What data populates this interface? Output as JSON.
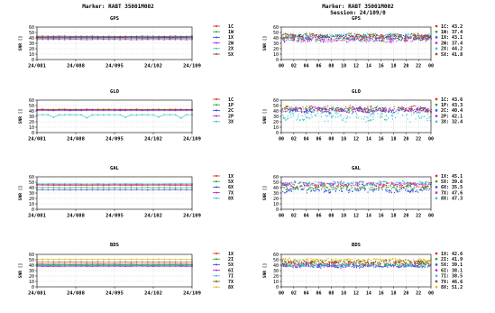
{
  "header": {
    "left_title": "Marker: RABT 35001M002",
    "right_title": "Marker: RABT 35001M002",
    "right_subtitle": "Session: 24/109/0"
  },
  "chart_data": [
    {
      "id": "gps-daily",
      "type": "line",
      "title": "GPS",
      "ylabel": "SNR []",
      "ylim": [
        0,
        60
      ],
      "yticks": [
        0,
        10,
        20,
        30,
        40,
        50,
        60
      ],
      "xticks": [
        "24/081",
        "24/088",
        "24/095",
        "24/102",
        "24/109"
      ],
      "x_range": [
        81,
        109
      ],
      "series": [
        {
          "name": "1C",
          "color": "#e8221f",
          "y": 41.5
        },
        {
          "name": "1W",
          "color": "#2aa12a",
          "y": 39.5
        },
        {
          "name": "1X",
          "color": "#2b4fd8",
          "y": 40.5
        },
        {
          "name": "2W",
          "color": "#b820d6",
          "y": 37.0
        },
        {
          "name": "2X",
          "color": "#30c8d0",
          "y": 42.5
        },
        {
          "name": "5X",
          "color": "#8b4a1e",
          "y": 43.0
        }
      ]
    },
    {
      "id": "glo-daily",
      "type": "line",
      "title": "GLO",
      "ylabel": "SNR []",
      "ylim": [
        0,
        60
      ],
      "yticks": [
        0,
        10,
        20,
        30,
        40,
        50,
        60
      ],
      "xticks": [
        "24/081",
        "24/088",
        "24/095",
        "24/102",
        "24/109"
      ],
      "x_range": [
        81,
        109
      ],
      "series": [
        {
          "name": "1C",
          "color": "#e8221f",
          "y": 43.0
        },
        {
          "name": "1P",
          "color": "#2aa12a",
          "y": 42.0
        },
        {
          "name": "2C",
          "color": "#2b4fd8",
          "y": 41.0
        },
        {
          "name": "2P",
          "color": "#b820d6",
          "y": 41.5
        },
        {
          "name": "3X",
          "color": "#30c8d0",
          "y": 33.0,
          "dips": [
            84,
            90,
            97,
            103,
            107
          ]
        }
      ]
    },
    {
      "id": "gal-daily",
      "type": "line",
      "title": "GAL",
      "ylabel": "SNR []",
      "ylim": [
        0,
        60
      ],
      "yticks": [
        0,
        10,
        20,
        30,
        40,
        50,
        60
      ],
      "xticks": [
        "24/081",
        "24/088",
        "24/095",
        "24/102",
        "24/109"
      ],
      "x_range": [
        81,
        109
      ],
      "series": [
        {
          "name": "1X",
          "color": "#e8221f",
          "y": 44.5
        },
        {
          "name": "5X",
          "color": "#2aa12a",
          "y": 40.0
        },
        {
          "name": "6X",
          "color": "#2b4fd8",
          "y": 36.0
        },
        {
          "name": "7X",
          "color": "#b820d6",
          "y": 46.0
        },
        {
          "name": "8X",
          "color": "#30c8d0",
          "y": 47.0
        }
      ]
    },
    {
      "id": "bds-daily",
      "type": "line",
      "title": "BDS",
      "ylabel": "SNR []",
      "ylim": [
        0,
        60
      ],
      "yticks": [
        0,
        10,
        20,
        30,
        40,
        50,
        60
      ],
      "xticks": [
        "24/081",
        "24/088",
        "24/095",
        "24/102",
        "24/109"
      ],
      "x_range": [
        81,
        109
      ],
      "series": [
        {
          "name": "1X",
          "color": "#e8221f",
          "y": 42.0
        },
        {
          "name": "2I",
          "color": "#2aa12a",
          "y": 41.0
        },
        {
          "name": "5X",
          "color": "#2b4fd8",
          "y": 39.0
        },
        {
          "name": "6I",
          "color": "#b820d6",
          "y": 38.0
        },
        {
          "name": "7I",
          "color": "#30c8d0",
          "y": 39.5
        },
        {
          "name": "7X",
          "color": "#8b4a1e",
          "y": 46.0
        },
        {
          "name": "8X",
          "color": "#d4c40e",
          "y": 51.0
        }
      ]
    },
    {
      "id": "gps-session",
      "type": "scatter",
      "title": "GPS",
      "ylabel": "SNR []",
      "ylim": [
        0,
        60
      ],
      "yticks": [
        0,
        10,
        20,
        30,
        40,
        50,
        60
      ],
      "xticks": [
        "00",
        "02",
        "04",
        "06",
        "08",
        "10",
        "12",
        "14",
        "16",
        "18",
        "20",
        "22",
        "00"
      ],
      "series": [
        {
          "name": "1C",
          "color": "#e8221f",
          "mean_label": "43.2",
          "center": 43,
          "spread": 4
        },
        {
          "name": "1W",
          "color": "#2aa12a",
          "mean_label": "37.4",
          "center": 38,
          "spread": 4
        },
        {
          "name": "1X",
          "color": "#2b4fd8",
          "mean_label": "43.1",
          "center": 41,
          "spread": 4
        },
        {
          "name": "2W",
          "color": "#b820d6",
          "mean_label": "37.4",
          "center": 36,
          "spread": 4
        },
        {
          "name": "2X",
          "color": "#30c8d0",
          "mean_label": "44.2",
          "center": 45,
          "spread": 3
        },
        {
          "name": "5X",
          "color": "#8b4a1e",
          "mean_label": "41.8",
          "center": 44,
          "spread": 4
        }
      ]
    },
    {
      "id": "glo-session",
      "type": "scatter",
      "title": "GLO",
      "ylabel": "SNR []",
      "ylim": [
        0,
        60
      ],
      "yticks": [
        0,
        10,
        20,
        30,
        40,
        50,
        60
      ],
      "xticks": [
        "00",
        "02",
        "04",
        "06",
        "08",
        "10",
        "12",
        "14",
        "16",
        "18",
        "20",
        "22",
        "00"
      ],
      "series": [
        {
          "name": "1C",
          "color": "#e8221f",
          "mean_label": "43.6",
          "center": 44,
          "spread": 5
        },
        {
          "name": "1P",
          "color": "#2aa12a",
          "mean_label": "43.3",
          "center": 43,
          "spread": 5
        },
        {
          "name": "2C",
          "color": "#2b4fd8",
          "mean_label": "40.4",
          "center": 41,
          "spread": 5
        },
        {
          "name": "2P",
          "color": "#b820d6",
          "mean_label": "42.1",
          "center": 42,
          "spread": 5
        },
        {
          "name": "3X",
          "color": "#30c8d0",
          "mean_label": "32.4",
          "center": 30,
          "spread": 9
        }
      ]
    },
    {
      "id": "gal-session",
      "type": "scatter",
      "title": "GAL",
      "ylabel": "SNR []",
      "ylim": [
        0,
        60
      ],
      "yticks": [
        0,
        10,
        20,
        30,
        40,
        50,
        60
      ],
      "xticks": [
        "00",
        "02",
        "04",
        "06",
        "08",
        "10",
        "12",
        "14",
        "16",
        "18",
        "20",
        "22",
        "00"
      ],
      "series": [
        {
          "name": "1X",
          "color": "#e8221f",
          "mean_label": "45.1",
          "center": 45,
          "spread": 4
        },
        {
          "name": "5X",
          "color": "#2aa12a",
          "mean_label": "39.6",
          "center": 40,
          "spread": 4
        },
        {
          "name": "6X",
          "color": "#2b4fd8",
          "mean_label": "35.5",
          "center": 35,
          "spread": 4
        },
        {
          "name": "7X",
          "color": "#b820d6",
          "mean_label": "47.6",
          "center": 47,
          "spread": 4
        },
        {
          "name": "8X",
          "color": "#30c8d0",
          "mean_label": "47.3",
          "center": 48,
          "spread": 4
        }
      ]
    },
    {
      "id": "bds-session",
      "type": "scatter",
      "title": "BDS",
      "ylabel": "SNR []",
      "ylim": [
        0,
        60
      ],
      "yticks": [
        0,
        10,
        20,
        30,
        40,
        50,
        60
      ],
      "xticks": [
        "00",
        "02",
        "04",
        "06",
        "08",
        "10",
        "12",
        "14",
        "16",
        "18",
        "20",
        "22",
        "00"
      ],
      "series": [
        {
          "name": "1X",
          "color": "#e8221f",
          "mean_label": "42.6",
          "center": 43,
          "spread": 3
        },
        {
          "name": "2I",
          "color": "#2aa12a",
          "mean_label": "41.9",
          "center": 42,
          "spread": 3
        },
        {
          "name": "5X",
          "color": "#2b4fd8",
          "mean_label": "39.1",
          "center": 39,
          "spread": 3
        },
        {
          "name": "6I",
          "color": "#b820d6",
          "mean_label": "38.1",
          "center": 38,
          "spread": 3
        },
        {
          "name": "7I",
          "color": "#30c8d0",
          "mean_label": "38.5",
          "center": 39,
          "spread": 3
        },
        {
          "name": "7X",
          "color": "#8b4a1e",
          "mean_label": "46.6",
          "center": 47,
          "spread": 3
        },
        {
          "name": "8X",
          "color": "#d4c40e",
          "mean_label": "51.2",
          "center": 50,
          "spread": 3
        }
      ]
    }
  ]
}
